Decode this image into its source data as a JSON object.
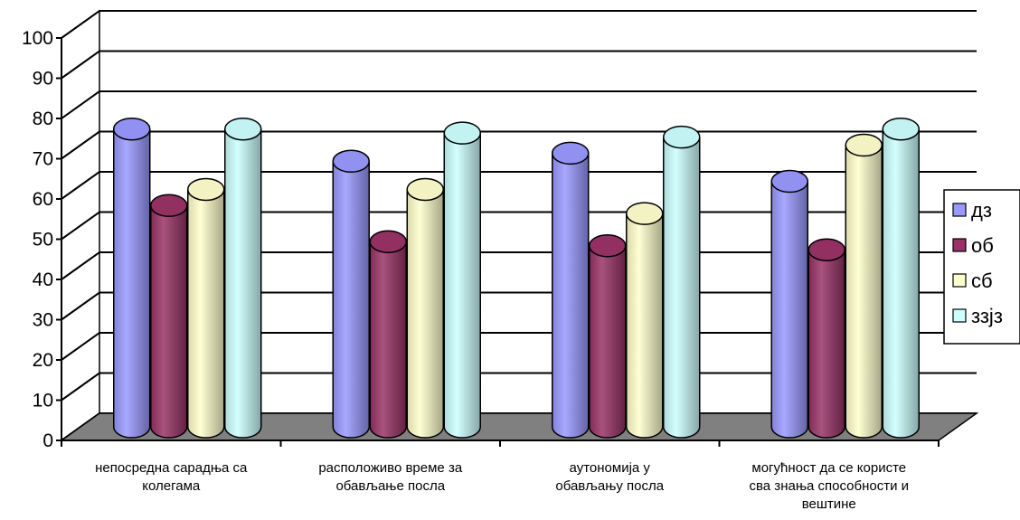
{
  "chart_data": {
    "type": "bar",
    "title": "",
    "xlabel": "",
    "ylabel": "",
    "ylim": [
      0,
      100
    ],
    "yticks": [
      0,
      10,
      20,
      30,
      40,
      50,
      60,
      70,
      80,
      90,
      100
    ],
    "grid": true,
    "legend_position": "right",
    "categories": [
      [
        "непосредна сарадња са",
        "колегама"
      ],
      [
        "расположиво време за",
        "обављање посла"
      ],
      [
        "аутономија у",
        "обављању посла"
      ],
      [
        "могућност да се користе",
        "сва знања способности и",
        "вештине"
      ]
    ],
    "series": [
      {
        "name": "дз",
        "color": "#9999ff",
        "values": [
          74,
          66,
          68,
          61
        ]
      },
      {
        "name": "об",
        "color": "#993366",
        "values": [
          55,
          46,
          45,
          44
        ]
      },
      {
        "name": "сб",
        "color": "#ffffcc",
        "values": [
          59,
          59,
          53,
          70
        ]
      },
      {
        "name": "ззјз",
        "color": "#ccffff",
        "values": [
          74,
          73,
          72,
          74
        ]
      }
    ]
  }
}
